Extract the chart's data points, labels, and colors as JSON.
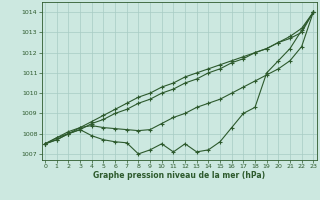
{
  "x": [
    0,
    1,
    2,
    3,
    4,
    5,
    6,
    7,
    8,
    9,
    10,
    11,
    12,
    13,
    14,
    15,
    16,
    17,
    18,
    19,
    20,
    21,
    22,
    23
  ],
  "line_straight1": [
    1007.5,
    1007.7,
    1008.0,
    1008.2,
    1008.5,
    1008.7,
    1009.0,
    1009.2,
    1009.5,
    1009.7,
    1010.0,
    1010.2,
    1010.5,
    1010.7,
    1011.0,
    1011.2,
    1011.5,
    1011.7,
    1012.0,
    1012.2,
    1012.5,
    1012.7,
    1013.0,
    1014.0
  ],
  "line_straight2": [
    1007.5,
    1007.7,
    1008.0,
    1008.3,
    1008.6,
    1008.9,
    1009.2,
    1009.5,
    1009.8,
    1010.0,
    1010.3,
    1010.5,
    1010.8,
    1011.0,
    1011.2,
    1011.4,
    1011.6,
    1011.8,
    1012.0,
    1012.2,
    1012.5,
    1012.8,
    1013.2,
    1014.0
  ],
  "line_wavy": [
    1007.5,
    1007.8,
    1008.0,
    1008.2,
    1007.9,
    1007.7,
    1007.6,
    1007.55,
    1007.0,
    1007.2,
    1007.5,
    1007.1,
    1007.5,
    1007.1,
    1007.2,
    1007.6,
    1008.3,
    1009.0,
    1009.3,
    1011.0,
    1011.6,
    1012.2,
    1013.1,
    1014.0
  ],
  "line_middle": [
    1007.5,
    1007.8,
    1008.1,
    1008.3,
    1008.4,
    1008.3,
    1008.25,
    1008.2,
    1008.15,
    1008.2,
    1008.5,
    1008.8,
    1009.0,
    1009.3,
    1009.5,
    1009.7,
    1010.0,
    1010.3,
    1010.6,
    1010.9,
    1011.2,
    1011.6,
    1012.3,
    1014.0
  ],
  "bg_color": "#cce8e0",
  "line_color": "#2d5a2d",
  "grid_color": "#a8ccc4",
  "title": "Graphe pression niveau de la mer (hPa)",
  "ylim_min": 1006.7,
  "ylim_max": 1014.5,
  "xlim_min": -0.3,
  "xlim_max": 23.3,
  "yticks": [
    1007,
    1008,
    1009,
    1010,
    1011,
    1012,
    1013,
    1014
  ],
  "xticks": [
    0,
    1,
    2,
    3,
    4,
    5,
    6,
    7,
    8,
    9,
    10,
    11,
    12,
    13,
    14,
    15,
    16,
    17,
    18,
    19,
    20,
    21,
    22,
    23
  ]
}
